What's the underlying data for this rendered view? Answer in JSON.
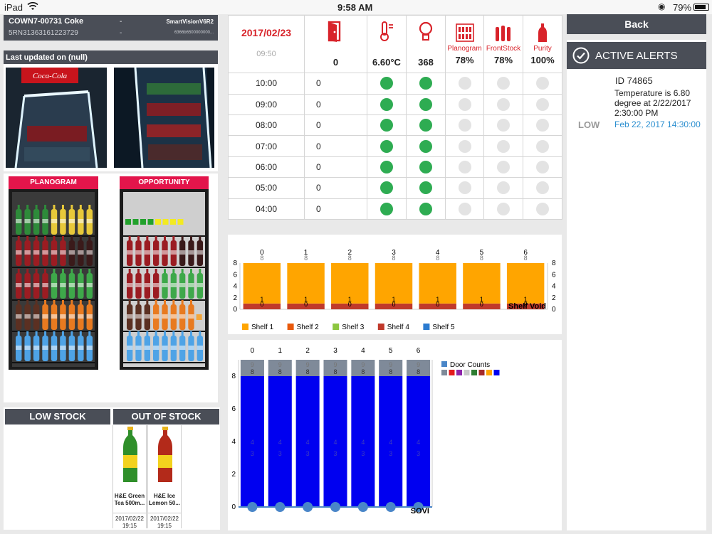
{
  "status_bar": {
    "device": "iPad",
    "time": "9:58 AM",
    "battery": "79%"
  },
  "cooler": {
    "name": "COWN7-00731 Coke",
    "dash1": "-",
    "serial": "5RN31363161223729",
    "dash2": "-",
    "model": "SmartVisionV6R2",
    "model_id": "6366b6500000000..."
  },
  "last_updated": "Last updated on (null)",
  "planogram_label": "PLANOGRAM",
  "opportunity_label": "OPPORTUNITY",
  "stock": {
    "low_label": "LOW STOCK",
    "out_label": "OUT OF STOCK",
    "items": [
      {
        "name": "H&E Green Tea 500m...",
        "date": "2017/02/22",
        "time": "19:15"
      },
      {
        "name": "H&E Ice Lemon 50...",
        "date": "2017/02/22",
        "time": "19:15"
      }
    ]
  },
  "summary": {
    "date": "2017/02/23",
    "time": "09:50",
    "door": "0",
    "temperature": "6.60°C",
    "light": "368",
    "planogram_label": "Planogram",
    "planogram": "78%",
    "frontstock_label": "FrontStock",
    "frontstock": "78%",
    "purity_label": "Purity",
    "purity": "100%"
  },
  "hourly": [
    {
      "time": "10:00",
      "door": "0",
      "temp": true,
      "light": true
    },
    {
      "time": "09:00",
      "door": "0",
      "temp": true,
      "light": true
    },
    {
      "time": "08:00",
      "door": "0",
      "temp": true,
      "light": true
    },
    {
      "time": "07:00",
      "door": "0",
      "temp": true,
      "light": true
    },
    {
      "time": "06:00",
      "door": "0",
      "temp": true,
      "light": true
    },
    {
      "time": "05:00",
      "door": "0",
      "temp": true,
      "light": true
    },
    {
      "time": "04:00",
      "door": "0",
      "temp": true,
      "light": true
    }
  ],
  "back_label": "Back",
  "alerts": {
    "title": "ACTIVE ALERTS",
    "items": [
      {
        "id": "ID 74865",
        "message": "Temperature is 6.80 degree at 2/22/2017 2:30:00 PM",
        "level": "LOW",
        "date": "Feb 22, 2017 14:30:00"
      }
    ]
  },
  "colors": {
    "header": "#4a4e57",
    "accent_red": "#d8232a",
    "alert_blue": "#2b8fd0",
    "status_green": "#2eac52",
    "bar_orange": "#ffa500",
    "bar_red": "#c0392b",
    "bar_blue": "#0000f0",
    "bar_gray": "#7f8a99"
  },
  "chart_data": [
    {
      "type": "bar",
      "x": [
        0,
        1,
        2,
        3,
        4,
        5,
        6
      ],
      "series": [
        {
          "name": "Shelf 1",
          "color": "#ffa500",
          "values": [
            7,
            7,
            7,
            7,
            7,
            7,
            7
          ]
        },
        {
          "name": "Shelf 2",
          "color": "#e8590c",
          "values": [
            0,
            0,
            0,
            0,
            0,
            0,
            0
          ]
        },
        {
          "name": "Shelf 3",
          "color": "#8cc63f",
          "values": [
            0,
            0,
            0,
            0,
            0,
            0,
            0
          ]
        },
        {
          "name": "Shelf 4",
          "color": "#c0392b",
          "values": [
            1,
            1,
            1,
            1,
            1,
            1,
            1
          ]
        },
        {
          "name": "Shelf 5",
          "color": "#2b7bd0",
          "values": [
            0,
            0,
            0,
            0,
            0,
            0,
            0
          ]
        }
      ],
      "top_labels": [
        "8",
        "8",
        "8",
        "8",
        "8",
        "8",
        "8"
      ],
      "inner_labels": [
        "1",
        "1",
        "1",
        "1",
        "1",
        "1",
        "1"
      ],
      "base_labels": [
        "0",
        "0",
        "0",
        "0",
        "0",
        "0",
        "0"
      ],
      "yticks": [
        0,
        2,
        4,
        6,
        8
      ],
      "ylim": [
        0,
        8
      ],
      "annotation": "Shelf Void",
      "legend_position": "bottom-left"
    },
    {
      "type": "bar",
      "x": [
        0,
        1,
        2,
        3,
        4,
        5,
        6
      ],
      "series": [
        {
          "name": "Door Counts",
          "color": "#4a86c8",
          "values": [
            0,
            0,
            0,
            0,
            0,
            0,
            0
          ]
        },
        {
          "name": "",
          "color": "#0000f0",
          "values": [
            8,
            8,
            8,
            8,
            8,
            8,
            8
          ]
        },
        {
          "name": "",
          "color": "#7f8a99",
          "values": [
            1,
            1,
            1,
            1,
            1,
            1,
            1
          ]
        }
      ],
      "top_labels": [
        "9",
        "9",
        "9",
        "9",
        "9",
        "9",
        "9"
      ],
      "mid_labels": [
        "8",
        "8",
        "8",
        "8",
        "8",
        "8",
        "8"
      ],
      "inner_labels": [
        "4",
        "4",
        "4",
        "4",
        "4",
        "4",
        "4"
      ],
      "inner_labels2": [
        "3",
        "3",
        "3",
        "3",
        "3",
        "3",
        "3"
      ],
      "legend_swatches": [
        "#7f8a99",
        "#e41a1c",
        "#8e24aa",
        "#c8c8c8",
        "#2e7d32",
        "#a52a2a",
        "#ffa500",
        "#0000f0"
      ],
      "yticks": [
        0,
        2,
        4,
        6,
        8
      ],
      "ylim": [
        0,
        9
      ],
      "annotation": "SOVI",
      "legend_position": "top-right"
    }
  ]
}
